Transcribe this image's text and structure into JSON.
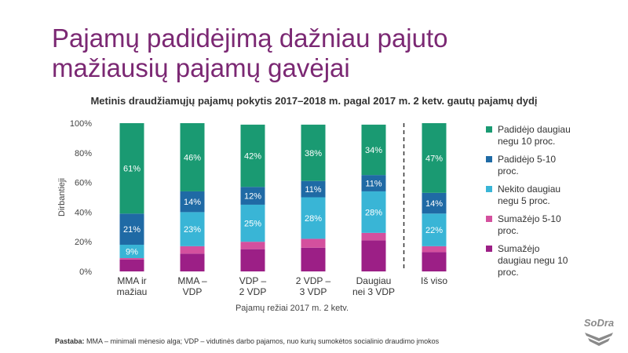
{
  "title": {
    "line1": "Pajamų padidėjimą dažniau pajuto",
    "line2": "mažiausių pajamų gavėjai"
  },
  "footnote": {
    "label": "Pastaba:",
    "text": " MMA – minimali mėnesio alga; VDP – vidutinės darbo pajamos, nuo kurių sumokėtos socialinio draudimo įmokos"
  },
  "logo": {
    "text": "SoDra"
  },
  "chart_data": {
    "type": "bar",
    "stacked": true,
    "percent": true,
    "title": "Metinis draudžiamųjų pajamų pokytis 2017–2018 m. pagal 2017 m. 2 ketv. gautų pajamų dydį",
    "xlabel": "Pajamų režiai 2017 m. 2 ketv.",
    "ylabel": "Dirbantieji",
    "ylim": [
      0,
      100
    ],
    "yticks": [
      "0%",
      "20%",
      "40%",
      "60%",
      "80%",
      "100%"
    ],
    "categories": [
      [
        "MMA ir",
        "mažiau"
      ],
      [
        "MMA –",
        "VDP"
      ],
      [
        "VDP –",
        "2 VDP"
      ],
      [
        "2 VDP –",
        "3 VDP"
      ],
      [
        "Daugiau",
        "nei 3 VDP"
      ],
      [
        "Iš viso"
      ]
    ],
    "separator_before_category": 5,
    "legend_position": "right",
    "series": [
      {
        "name": "Sumažėjo daugiau negu 10 proc.",
        "color": "#9c1f86",
        "values": [
          8,
          12,
          15,
          16,
          21,
          13
        ],
        "labels": [
          "",
          "",
          "",
          "",
          "",
          ""
        ]
      },
      {
        "name": "Sumažėjo 5-10 proc.",
        "color": "#d4509e",
        "values": [
          1,
          5,
          5,
          6,
          5,
          4
        ],
        "labels": [
          "",
          "",
          "",
          "",
          "",
          ""
        ]
      },
      {
        "name": "Nekito daugiau negu 5 proc.",
        "color": "#39b5d6",
        "values": [
          9,
          23,
          25,
          28,
          28,
          22
        ],
        "labels": [
          "9%",
          "23%",
          "25%",
          "28%",
          "28%",
          "22%"
        ]
      },
      {
        "name": "Padidėjo 5-10 proc.",
        "color": "#1f6aa5",
        "values": [
          21,
          14,
          12,
          11,
          11,
          14
        ],
        "labels": [
          "21%",
          "14%",
          "12%",
          "11%",
          "11%",
          "14%"
        ]
      },
      {
        "name": "Padidėjo daugiau negu 10 proc.",
        "color": "#1a9a72",
        "values": [
          61,
          46,
          42,
          38,
          34,
          47
        ],
        "labels": [
          "61%",
          "46%",
          "42%",
          "38%",
          "34%",
          "47%"
        ]
      }
    ],
    "legend": [
      {
        "lines": [
          "Padidėjo daugiau",
          "negu 10 proc."
        ],
        "color": "#1a9a72"
      },
      {
        "lines": [
          "Padidėjo 5-10",
          "proc."
        ],
        "color": "#1f6aa5"
      },
      {
        "lines": [
          "Nekito daugiau",
          "negu 5 proc."
        ],
        "color": "#39b5d6"
      },
      {
        "lines": [
          "Sumažėjo 5-10",
          "proc."
        ],
        "color": "#d4509e"
      },
      {
        "lines": [
          "Sumažėjo",
          "daugiau negu 10",
          "proc."
        ],
        "color": "#9c1f86"
      }
    ]
  }
}
